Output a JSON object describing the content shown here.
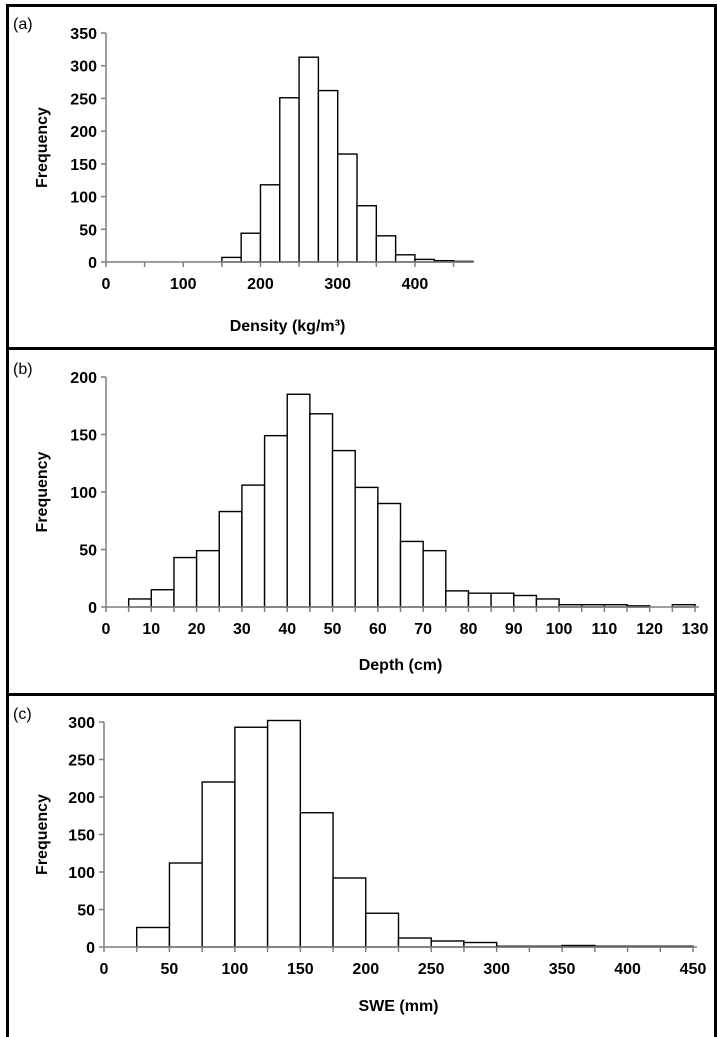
{
  "chart_data": [
    {
      "panel": "(a)",
      "type": "bar",
      "xlabel": "Density (kg/m³)",
      "ylabel": "Frequency",
      "xlim": [
        0,
        470
      ],
      "ylim": [
        0,
        350
      ],
      "xticks": [
        0,
        100,
        200,
        300,
        400
      ],
      "yticks": [
        0,
        50,
        100,
        150,
        200,
        250,
        300,
        350
      ],
      "bin_width": 25,
      "bins": [
        {
          "start": 0,
          "value": 0
        },
        {
          "start": 25,
          "value": 0
        },
        {
          "start": 50,
          "value": 0
        },
        {
          "start": 75,
          "value": 0
        },
        {
          "start": 100,
          "value": 0
        },
        {
          "start": 125,
          "value": 0
        },
        {
          "start": 150,
          "value": 7
        },
        {
          "start": 175,
          "value": 44
        },
        {
          "start": 200,
          "value": 118
        },
        {
          "start": 225,
          "value": 251
        },
        {
          "start": 250,
          "value": 313
        },
        {
          "start": 275,
          "value": 262
        },
        {
          "start": 300,
          "value": 165
        },
        {
          "start": 325,
          "value": 86
        },
        {
          "start": 350,
          "value": 40
        },
        {
          "start": 375,
          "value": 11
        },
        {
          "start": 400,
          "value": 4
        },
        {
          "start": 425,
          "value": 2
        },
        {
          "start": 450,
          "value": 1
        }
      ]
    },
    {
      "panel": "(b)",
      "type": "bar",
      "xlabel": "Depth (cm)",
      "ylabel": "Frequency",
      "xlim": [
        0,
        130
      ],
      "ylim": [
        0,
        200
      ],
      "xticks": [
        0,
        10,
        20,
        30,
        40,
        50,
        60,
        70,
        80,
        90,
        100,
        110,
        120,
        130
      ],
      "yticks": [
        0,
        50,
        100,
        150,
        200
      ],
      "bin_width": 5,
      "bins": [
        {
          "start": 0,
          "value": 0
        },
        {
          "start": 5,
          "value": 7
        },
        {
          "start": 10,
          "value": 15
        },
        {
          "start": 15,
          "value": 43
        },
        {
          "start": 20,
          "value": 49
        },
        {
          "start": 25,
          "value": 83
        },
        {
          "start": 30,
          "value": 106
        },
        {
          "start": 35,
          "value": 149
        },
        {
          "start": 40,
          "value": 185
        },
        {
          "start": 45,
          "value": 168
        },
        {
          "start": 50,
          "value": 136
        },
        {
          "start": 55,
          "value": 104
        },
        {
          "start": 60,
          "value": 90
        },
        {
          "start": 65,
          "value": 57
        },
        {
          "start": 70,
          "value": 49
        },
        {
          "start": 75,
          "value": 14
        },
        {
          "start": 80,
          "value": 12
        },
        {
          "start": 85,
          "value": 12
        },
        {
          "start": 90,
          "value": 10
        },
        {
          "start": 95,
          "value": 7
        },
        {
          "start": 100,
          "value": 2
        },
        {
          "start": 105,
          "value": 2
        },
        {
          "start": 110,
          "value": 2
        },
        {
          "start": 115,
          "value": 1
        },
        {
          "start": 120,
          "value": 0
        },
        {
          "start": 125,
          "value": 2
        }
      ]
    },
    {
      "panel": "(c)",
      "type": "bar",
      "xlabel": "SWE (mm)",
      "ylabel": "Frequency",
      "xlim": [
        0,
        450
      ],
      "ylim": [
        0,
        300
      ],
      "xticks": [
        0,
        50,
        100,
        150,
        200,
        250,
        300,
        350,
        400,
        450
      ],
      "yticks": [
        0,
        50,
        100,
        150,
        200,
        250,
        300
      ],
      "bin_width": 25,
      "bins": [
        {
          "start": 0,
          "value": 0
        },
        {
          "start": 25,
          "value": 26
        },
        {
          "start": 50,
          "value": 112
        },
        {
          "start": 75,
          "value": 220
        },
        {
          "start": 100,
          "value": 293
        },
        {
          "start": 125,
          "value": 302
        },
        {
          "start": 150,
          "value": 179
        },
        {
          "start": 175,
          "value": 92
        },
        {
          "start": 200,
          "value": 45
        },
        {
          "start": 225,
          "value": 12
        },
        {
          "start": 250,
          "value": 8
        },
        {
          "start": 275,
          "value": 6
        },
        {
          "start": 300,
          "value": 1
        },
        {
          "start": 325,
          "value": 1
        },
        {
          "start": 350,
          "value": 2
        },
        {
          "start": 375,
          "value": 1
        },
        {
          "start": 400,
          "value": 1
        },
        {
          "start": 425,
          "value": 1
        }
      ]
    }
  ]
}
